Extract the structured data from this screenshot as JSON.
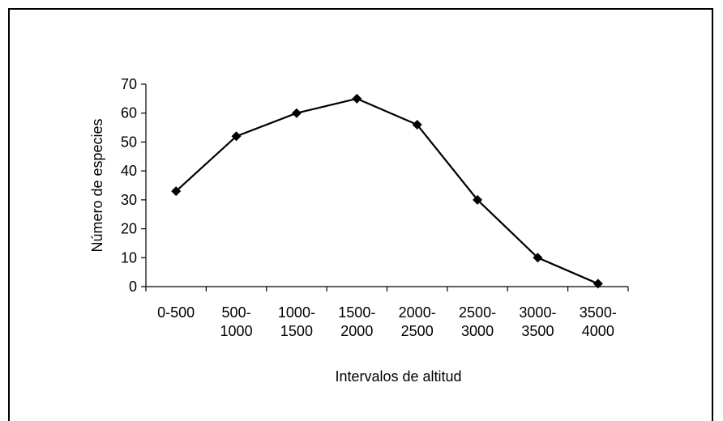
{
  "chart_data": {
    "type": "line",
    "title": "",
    "xlabel": "Intervalos de altitud",
    "ylabel": "Número de especies",
    "categories": [
      [
        "0-500"
      ],
      [
        "500-",
        "1000"
      ],
      [
        "1000-",
        "1500"
      ],
      [
        "1500-",
        "2000"
      ],
      [
        "2000-",
        "2500"
      ],
      [
        "2500-",
        "3000"
      ],
      [
        "3000-",
        "3500"
      ],
      [
        "3500-",
        "4000"
      ]
    ],
    "series": [
      {
        "values": [
          33,
          52,
          60,
          65,
          56,
          30,
          10,
          1
        ]
      }
    ],
    "ylim": [
      0,
      70
    ],
    "yticks": [
      0,
      10,
      20,
      30,
      40,
      50,
      60,
      70
    ],
    "grid": false,
    "legend": "none",
    "marker": "diamond",
    "line_color": "#000000"
  }
}
